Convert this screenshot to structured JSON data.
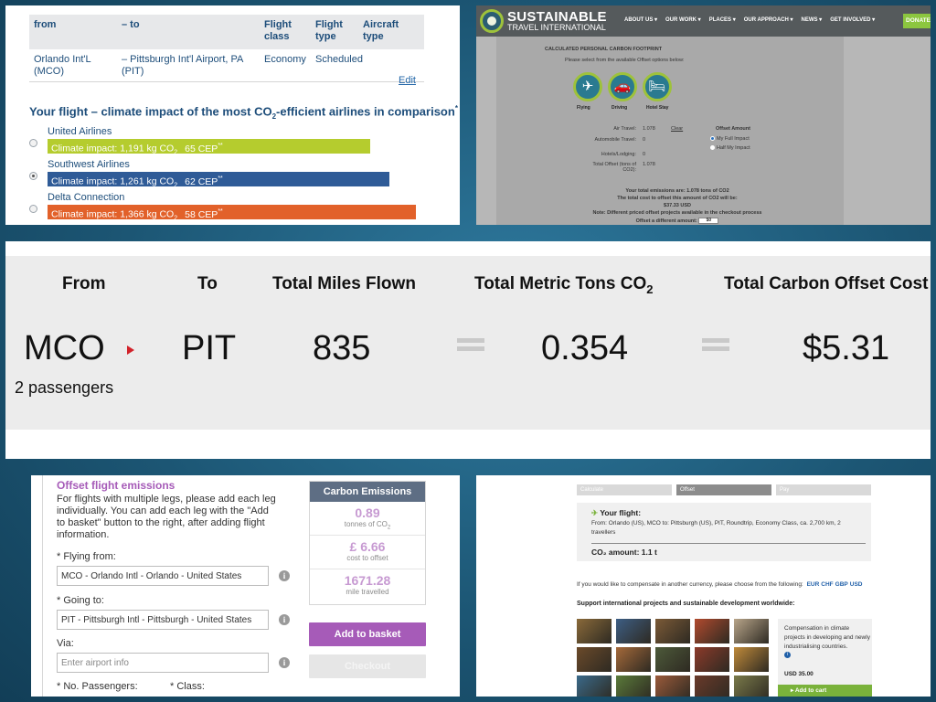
{
  "panel1": {
    "headers": {
      "from": "from",
      "to": "– to",
      "class": "Flight class",
      "type": "Flight type",
      "aircraft": "Aircraft type"
    },
    "row": {
      "from": "Orlando Int'L (MCO)",
      "to": "– Pittsburgh Int'l Airport, PA (PIT)",
      "class": "Economy",
      "type": "Scheduled",
      "aircraft": ""
    },
    "edit": "Edit",
    "heading_pre": "Your flight – climate impact of the most CO",
    "heading_sub": "2",
    "heading_post": "-efficient airlines in comparison",
    "heading_mark": "*",
    "airlines": [
      {
        "name": "United Airlines",
        "impact": "Climate impact: 1,191 kg CO",
        "sub": "2",
        "cep": "65 CEP",
        "cep_mark": "**",
        "color": "#b5cc2e",
        "selected": false,
        "share": 0.84
      },
      {
        "name": "Southwest Airlines",
        "impact": "Climate impact: 1,261 kg CO",
        "sub": "2",
        "cep": "62 CEP",
        "cep_mark": "**",
        "color": "#2f5b97",
        "selected": true,
        "share": 0.89
      },
      {
        "name": "Delta Connection",
        "impact": "Climate impact: 1,366 kg CO",
        "sub": "2",
        "cep": "58 CEP",
        "cep_mark": "**",
        "color": "#e2612a",
        "selected": false,
        "share": 0.96
      }
    ]
  },
  "panel2": {
    "brand": "SUSTAINABLE",
    "brand_sub": "TRAVEL INTERNATIONAL",
    "nav": [
      "ABOUT US ▾",
      "OUR WORK ▾",
      "PLACES ▾",
      "OUR APPROACH ▾",
      "NEWS ▾",
      "GET INVOLVED ▾"
    ],
    "donate": "DONATE",
    "title": "CALCULATED PERSONAL CARBON FOOTPRINT",
    "instruction": "Please select from the available Offset options below:",
    "options": [
      {
        "label": "Flying",
        "icon": "airplane-icon",
        "glyph": "✈"
      },
      {
        "label": "Driving",
        "icon": "car-icon",
        "glyph": "🚗"
      },
      {
        "label": "Hotel Stay",
        "icon": "bed-icon",
        "glyph": "🛏"
      }
    ],
    "rows": [
      {
        "label": "Air Travel:",
        "value": "1.078",
        "extra": "Clear"
      },
      {
        "label": "Automobile Travel:",
        "value": "0",
        "extra": ""
      },
      {
        "label": "Hotels/Lodging:",
        "value": "0",
        "extra": ""
      },
      {
        "label": "Total Offset (tons of CO2):",
        "value": "1.078",
        "extra": ""
      }
    ],
    "offset_heading": "Offset Amount",
    "offset_options": [
      {
        "label": "My Full Impact",
        "selected": true
      },
      {
        "label": "Half My Impact",
        "selected": false
      }
    ],
    "total_emissions": "Your total emissions are: 1.078 tons of CO2",
    "total_cost_line": "The total cost to offset this amount of CO2 will be:",
    "total_cost": "$37.33 USD",
    "note": "Note: Different priced offset projects available in the checkout process",
    "different_amount_label": "Offset a different amount:",
    "different_amount_value": "$0"
  },
  "panel3": {
    "headers": {
      "from": "From",
      "to": "To",
      "miles": "Total Miles Flown",
      "tons_pre": "Total Metric Tons CO",
      "tons_sub": "2",
      "cost": "Total Carbon Offset Cost"
    },
    "values": {
      "from": "MCO",
      "to": "PIT",
      "miles": "835",
      "tons": "0.354",
      "cost": "$5.31"
    },
    "passengers": "2 passengers"
  },
  "panel4": {
    "title": "Offset flight emissions",
    "text": "For flights with multiple legs, please add each leg individually. You can add each leg with the \"Add to basket\" button to the right, after adding flight information.",
    "flying_from_label": "* Flying from:",
    "flying_from_value": "MCO - Orlando Intl - Orlando - United States",
    "going_to_label": "* Going to:",
    "going_to_value": "PIT - Pittsburgh Intl - Pittsburgh - United States",
    "via_label": "Via:",
    "via_placeholder": "Enter airport info",
    "passengers_label": "* No. Passengers:",
    "class_label": "* Class:",
    "emissions": {
      "heading": "Carbon Emissions",
      "tons": "0.89",
      "tons_unit_pre": "tonnes of CO",
      "tons_unit_sub": "2",
      "cost": "£ 6.66",
      "cost_unit": "cost to offset",
      "miles": "1671.28",
      "miles_unit": "mile travelled"
    },
    "add_button": "Add to basket",
    "checkout_button": "Checkout"
  },
  "panel5": {
    "steps": [
      "Calculate",
      "Offset",
      "Pay"
    ],
    "active_step": 1,
    "flight_title": "Your flight:",
    "flight_detail": "From: Orlando (US), MCO to: Pittsburgh (US), PIT, Roundtrip, Economy Class, ca. 2,700 km, 2 travellers",
    "co2": "CO₂ amount: 1.1 t",
    "currency_text": "If you would like to compensate in another currency, please choose from the following:",
    "currencies": [
      "EUR",
      "CHF",
      "GBP",
      "USD"
    ],
    "support": "Support international projects and sustainable development worldwide:",
    "side_text": "Compensation in climate projects in developing and newly industrialising countries.",
    "price": "USD 35.00",
    "cart_button": "Add to cart",
    "thumb_colors": [
      "#8a6a3a",
      "#3d5e84",
      "#7b5a37",
      "#b14a2e",
      "#b8a58a",
      "#6b4a2a",
      "#a5693a",
      "#4d5a3a",
      "#8c3a2a",
      "#c08a3a",
      "#3a6a8a",
      "#5a7a3a",
      "#9a5a3a",
      "#6a3a2a",
      "#7a7a4a"
    ]
  }
}
